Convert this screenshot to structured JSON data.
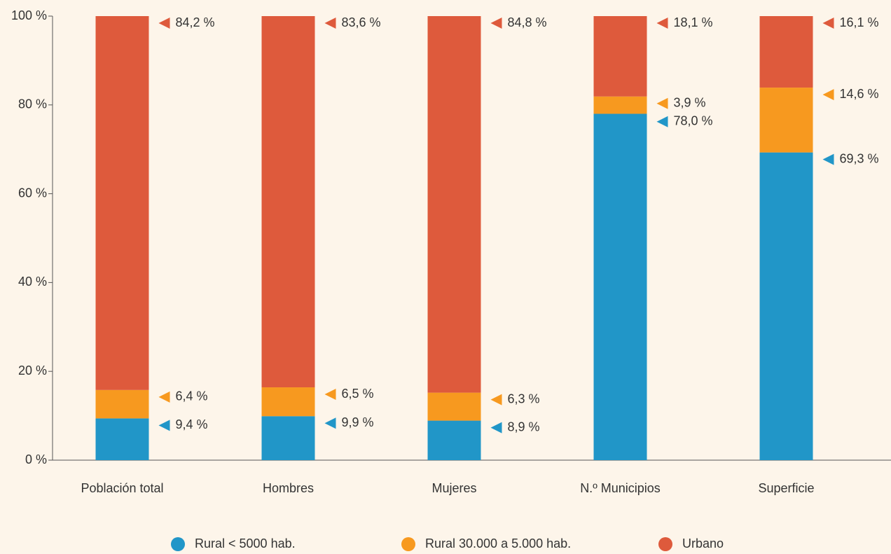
{
  "chart_data": {
    "type": "stacked_bar",
    "categories": [
      "Población total",
      "Hombres",
      "Mujeres",
      "N.º Municipios",
      "Superficie"
    ],
    "series": [
      {
        "name": "Rural < 5000 hab.",
        "color": "#2196c8",
        "values": [
          9.4,
          9.9,
          8.9,
          78.0,
          69.3
        ],
        "value_labels": [
          "9,4 %",
          "9,9 %",
          "8,9 %",
          "78,0 %",
          "69,3 %"
        ]
      },
      {
        "name": "Rural 30.000 a 5.000 hab.",
        "color": "#f7991f",
        "values": [
          6.4,
          6.5,
          6.3,
          3.9,
          14.6
        ],
        "value_labels": [
          "6,4 %",
          "6,5 %",
          "6,3 %",
          "3,9 %",
          "14,6 %"
        ]
      },
      {
        "name": "Urbano",
        "color": "#de5a3c",
        "values": [
          84.2,
          83.6,
          84.8,
          18.1,
          16.1
        ],
        "value_labels": [
          "84,2 %",
          "83,6 %",
          "84,8 %",
          "18,1 %",
          "16,1 %"
        ]
      }
    ],
    "ylim": [
      0,
      100
    ],
    "yticks": [
      {
        "value": 0,
        "label": "0 %"
      },
      {
        "value": 20,
        "label": "20 %"
      },
      {
        "value": 40,
        "label": "40 %"
      },
      {
        "value": 60,
        "label": "60 %"
      },
      {
        "value": 80,
        "label": "80 %"
      },
      {
        "value": 100,
        "label": "100 %"
      }
    ],
    "legend": "bottom"
  }
}
